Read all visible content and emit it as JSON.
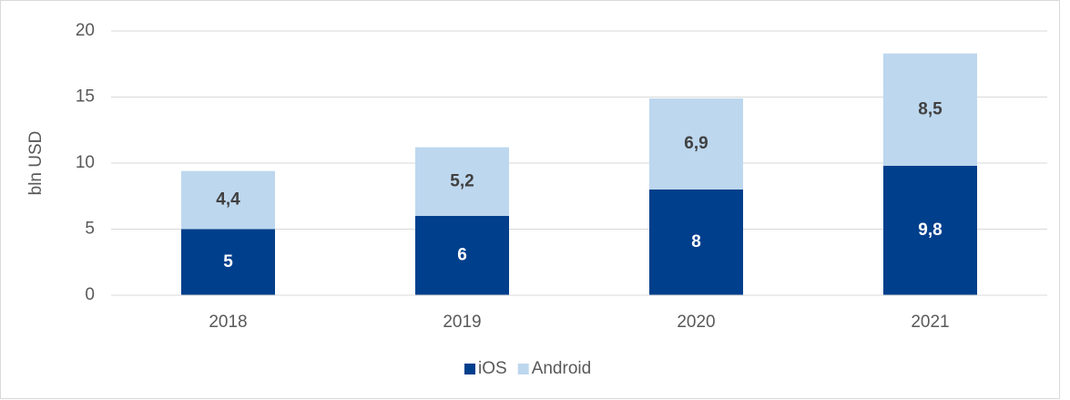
{
  "chart_data": {
    "type": "bar",
    "stacked": true,
    "ylabel": "bln USD",
    "categories": [
      "2018",
      "2019",
      "2020",
      "2021"
    ],
    "series": [
      {
        "name": "iOS",
        "color": "#003f8c",
        "values": [
          5,
          6,
          8,
          9.8
        ],
        "value_labels": [
          "5",
          "6",
          "8",
          "9,8"
        ]
      },
      {
        "name": "Android",
        "color": "#bdd7ee",
        "values": [
          4.4,
          5.2,
          6.9,
          8.5
        ],
        "value_labels": [
          "4,4",
          "5,2",
          "6,9",
          "8,5"
        ]
      }
    ],
    "ylim": [
      0,
      20
    ],
    "yticks": [
      0,
      5,
      10,
      15,
      20
    ],
    "grid": true,
    "legend": "bottom"
  }
}
